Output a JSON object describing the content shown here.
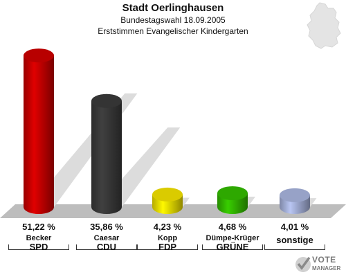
{
  "header": {
    "title": "Stadt Oerlinghausen",
    "subtitle": "Bundestagswahl 18.09.2005",
    "subtitle2": "Erststimmen Evangelischer Kindergarten"
  },
  "logo": {
    "line1": "VOTE",
    "line2": "MANAGER"
  },
  "colors": {
    "SPD": "#cc0000",
    "CDU": "#3a3a3a",
    "FDP": "#f2e200",
    "GRUENE": "#33bb00",
    "sonstige": "#a8b4dd",
    "floor": "#bdbdbd"
  },
  "chart_data": {
    "type": "bar",
    "title": "Stadt Oerlinghausen",
    "subtitle": "Bundestagswahl 18.09.2005 – Erststimmen Evangelischer Kindergarten",
    "categories": [
      "SPD",
      "CDU",
      "FDP",
      "GRÜNE",
      "sonstige"
    ],
    "candidates": [
      "Becker",
      "Caesar",
      "Kopp",
      "Dümpe-Krüger",
      ""
    ],
    "values": [
      51.22,
      35.86,
      4.23,
      4.68,
      4.01
    ],
    "value_labels": [
      "51,22 %",
      "35,86 %",
      "4,23 %",
      "4,68 %",
      "4,01 %"
    ],
    "unit": "%",
    "ylim": [
      0,
      55
    ],
    "grid": false,
    "legend": "none"
  }
}
